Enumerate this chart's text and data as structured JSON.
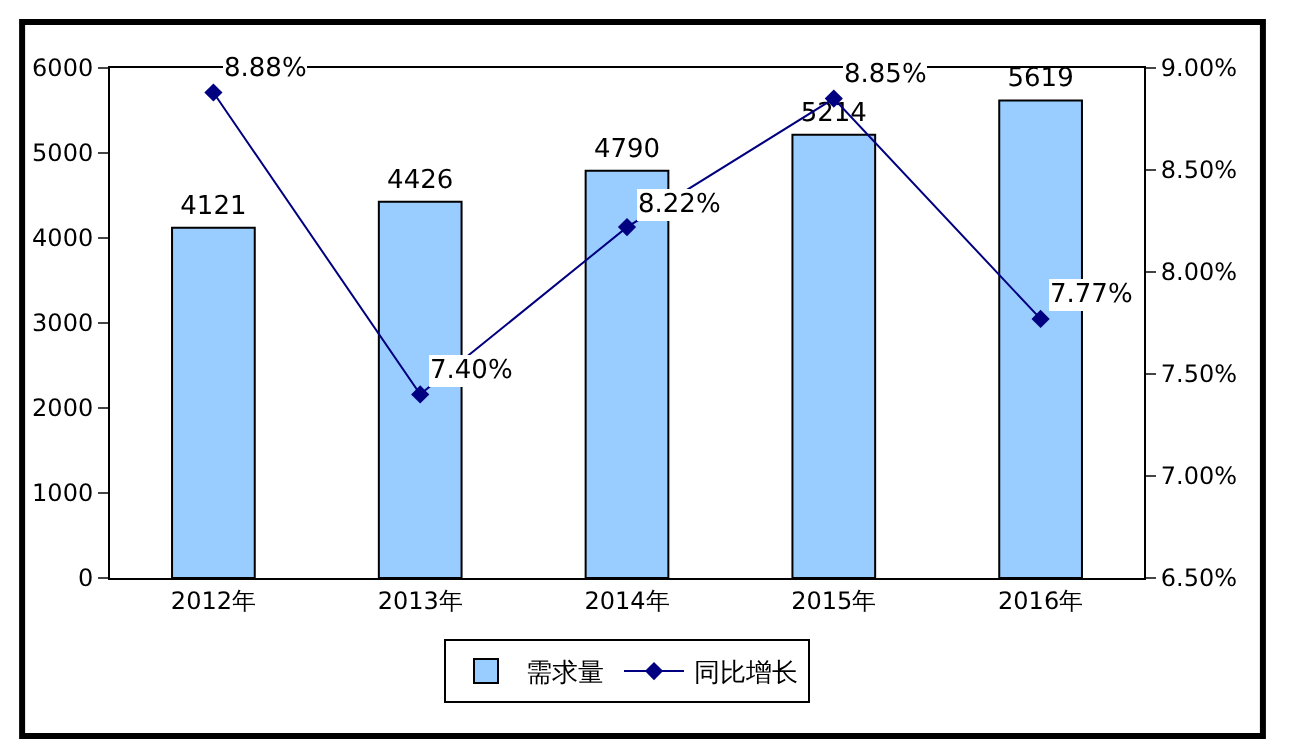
{
  "chart_data": {
    "type": "bar",
    "categories": [
      "2012年",
      "2013年",
      "2014年",
      "2015年",
      "2016年"
    ],
    "series": [
      {
        "name": "需求量",
        "color": "#99ccff",
        "values": [
          4121,
          4426,
          4790,
          5214,
          5619
        ],
        "value_labels": [
          "4121",
          "4426",
          "4790",
          "5214",
          "5619"
        ]
      },
      {
        "name": "同比增长",
        "type": "line",
        "axis": "y2",
        "color": "#000080",
        "marker": "diamond",
        "values": [
          8.88,
          7.4,
          8.22,
          8.85,
          7.77
        ],
        "value_labels": [
          "8.88%",
          "7.40%",
          "8.22%",
          "8.85%",
          "7.77%"
        ]
      }
    ],
    "ylim": [
      0,
      6000
    ],
    "yticks": [
      0,
      1000,
      2000,
      3000,
      4000,
      5000,
      6000
    ],
    "y2lim": [
      6.5,
      9.0
    ],
    "y2ticks": [
      {
        "value": 6.5,
        "label": "6.50%"
      },
      {
        "value": 7.0,
        "label": "7.00%"
      },
      {
        "value": 7.5,
        "label": "7.50%"
      },
      {
        "value": 8.0,
        "label": "8.00%"
      },
      {
        "value": 8.5,
        "label": "8.50%"
      },
      {
        "value": 9.0,
        "label": "9.00%"
      }
    ],
    "legend": "bottom"
  }
}
